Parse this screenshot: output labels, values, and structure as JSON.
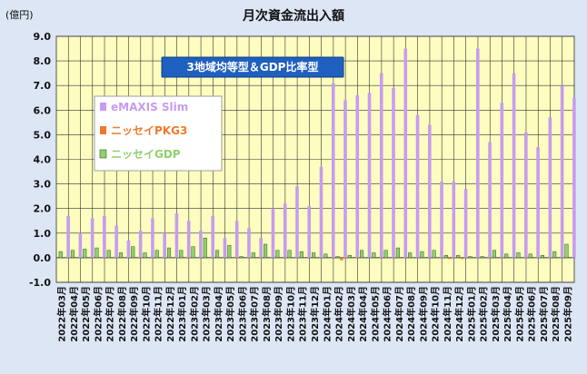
{
  "chart_data": {
    "type": "bar",
    "title": "月次資金流出入額",
    "unit_label": "(億円)",
    "subtitle": "3地域均等型＆GDP比率型",
    "ylim": [
      -1.0,
      9.0
    ],
    "yticks": [
      "9.0",
      "8.0",
      "7.0",
      "6.0",
      "5.0",
      "4.0",
      "3.0",
      "2.0",
      "1.0",
      "0.0",
      "-1.0"
    ],
    "legend_position": "top-left",
    "grid": "vertical-and-horizontal",
    "categories": [
      "2022年03月",
      "2022年04月",
      "2022年05月",
      "2022年06月",
      "2022年07月",
      "2022年08月",
      "2022年09月",
      "2022年10月",
      "2022年11月",
      "2022年12月",
      "2023年01月",
      "2023年02月",
      "2023年03月",
      "2023年04月",
      "2023年05月",
      "2023年06月",
      "2023年07月",
      "2023年08月",
      "2023年09月",
      "2023年10月",
      "2023年11月",
      "2023年12月",
      "2024年01月",
      "2024年02月",
      "2024年03月",
      "2024年04月",
      "2024年05月",
      "2024年06月",
      "2024年07月",
      "2024年08月",
      "2024年09月",
      "2024年10月",
      "2024年11月",
      "2024年12月",
      "2025年01月",
      "2025年02月",
      "2025年03月",
      "2025年04月",
      "2025年05月",
      "2025年06月",
      "2025年07月",
      "2025年08月",
      "2025年09月"
    ],
    "series": [
      {
        "name": "eMAXIS Slim",
        "color": "#c69cf0",
        "values": [
          1.7,
          1.0,
          1.6,
          1.7,
          1.3,
          0.7,
          1.1,
          1.6,
          1.0,
          1.8,
          1.5,
          1.1,
          1.7,
          0.8,
          1.5,
          1.2,
          0.8,
          2.0,
          2.2,
          2.9,
          2.1,
          3.7,
          7.1,
          6.4,
          6.6,
          6.7,
          7.5,
          6.9,
          8.5,
          5.8,
          5.4,
          3.1,
          3.1,
          2.8,
          8.5,
          4.7,
          6.3,
          7.5,
          5.1,
          4.5,
          5.7,
          7.0,
          6.5
        ]
      },
      {
        "name": "ニッセイPKG3",
        "color": "#f07a2a",
        "values": [
          0.0,
          0.0,
          0.0,
          0.0,
          0.0,
          0.0,
          0.0,
          0.0,
          0.0,
          0.0,
          0.0,
          0.0,
          0.0,
          0.0,
          0.0,
          0.0,
          0.0,
          0.0,
          0.0,
          0.0,
          0.0,
          0.0,
          0.0,
          -0.1,
          0.0,
          0.0,
          0.0,
          0.0,
          0.0,
          0.0,
          0.0,
          0.0,
          -0.05,
          -0.05,
          0.0,
          0.0,
          0.0,
          0.0,
          0.0,
          0.0,
          0.0,
          0.0,
          0.0
        ]
      },
      {
        "name": "ニッセイGDP",
        "color": "#8fd16e",
        "values": [
          0.25,
          0.3,
          0.35,
          0.4,
          0.3,
          0.2,
          0.45,
          0.2,
          0.3,
          0.4,
          0.3,
          0.45,
          0.8,
          0.3,
          0.5,
          0.05,
          0.2,
          0.55,
          0.3,
          0.3,
          0.25,
          0.2,
          0.15,
          0.05,
          0.1,
          0.3,
          0.2,
          0.3,
          0.4,
          0.2,
          0.25,
          0.3,
          0.1,
          0.1,
          0.05,
          0.05,
          0.3,
          0.15,
          0.2,
          0.15,
          0.1,
          0.25,
          0.55
        ]
      }
    ]
  }
}
